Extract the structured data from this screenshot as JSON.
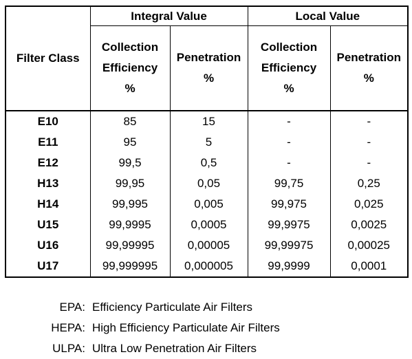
{
  "table": {
    "filter_class_header": "Filter Class",
    "groups": [
      "Integral Value",
      "Local Value"
    ],
    "sub_headers": {
      "collection": [
        "Collection",
        "Efficiency",
        "%"
      ],
      "penetration": [
        "Penetration",
        "%"
      ]
    },
    "rows": [
      {
        "class": "E10",
        "int_eff": "85",
        "int_pen": "15",
        "loc_eff": "-",
        "loc_pen": "-"
      },
      {
        "class": "E11",
        "int_eff": "95",
        "int_pen": "5",
        "loc_eff": "-",
        "loc_pen": "-"
      },
      {
        "class": "E12",
        "int_eff": "99,5",
        "int_pen": "0,5",
        "loc_eff": "-",
        "loc_pen": "-"
      },
      {
        "class": "H13",
        "int_eff": "99,95",
        "int_pen": "0,05",
        "loc_eff": "99,75",
        "loc_pen": "0,25"
      },
      {
        "class": "H14",
        "int_eff": "99,995",
        "int_pen": "0,005",
        "loc_eff": "99,975",
        "loc_pen": "0,025"
      },
      {
        "class": "U15",
        "int_eff": "99,9995",
        "int_pen": "0,0005",
        "loc_eff": "99,9975",
        "loc_pen": "0,0025"
      },
      {
        "class": "U16",
        "int_eff": "99,99995",
        "int_pen": "0,00005",
        "loc_eff": "99,99975",
        "loc_pen": "0,00025"
      },
      {
        "class": "U17",
        "int_eff": "99,999995",
        "int_pen": "0,000005",
        "loc_eff": "99,9999",
        "loc_pen": "0,0001"
      }
    ]
  },
  "legend": [
    {
      "abbr": "EPA:",
      "desc": "Efficiency Particulate Air Filters"
    },
    {
      "abbr": "HEPA:",
      "desc": "High Efficiency Particulate Air Filters"
    },
    {
      "abbr": "ULPA:",
      "desc": "Ultra Low Penetration Air Filters"
    }
  ]
}
